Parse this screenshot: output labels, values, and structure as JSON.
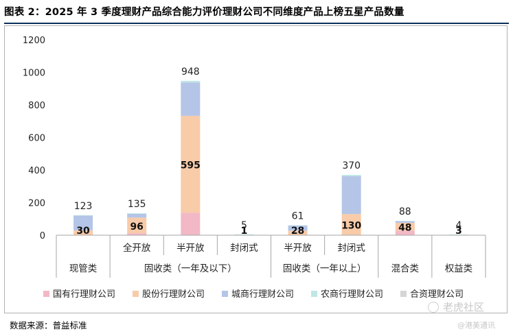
{
  "title": "图表 2：2025 年 3 季度理财产品综合能力评价理财公司不同维度产品上榜五星产品数量",
  "source": "数据来源：普益标准",
  "watermark": "老虎社区",
  "watermark_sub": "@港美通讯",
  "chart_data": {
    "type": "bar",
    "stacked": true,
    "ylim": [
      0,
      1200
    ],
    "yticks": [
      0,
      200,
      400,
      600,
      800,
      1000,
      1200
    ],
    "grid": false,
    "legend_position": "bottom",
    "categories": [
      "",
      "全开放",
      "半开放",
      "封闭式",
      "半开放",
      "封闭式",
      "",
      ""
    ],
    "groups": [
      {
        "label": "现管类",
        "span": 1
      },
      {
        "label": "固收类（一年及以下）",
        "span": 3
      },
      {
        "label": "固收类（一年以上）",
        "span": 2
      },
      {
        "label": "混合类",
        "span": 1
      },
      {
        "label": "权益类",
        "span": 1
      }
    ],
    "totals": [
      123,
      135,
      948,
      5,
      61,
      370,
      88,
      4
    ],
    "inner_labels": [
      "30",
      "96",
      "595",
      "1",
      "28",
      "130",
      "48",
      "3"
    ],
    "series": [
      {
        "name": "国有行理财公司",
        "color": "#f2b8c6",
        "values": [
          0,
          12,
          138,
          0,
          0,
          0,
          28,
          0
        ]
      },
      {
        "name": "股份行理财公司",
        "color": "#f8cba9",
        "values": [
          30,
          96,
          595,
          1,
          28,
          130,
          48,
          3
        ]
      },
      {
        "name": "城商行理财公司",
        "color": "#b4c5e7",
        "values": [
          91,
          23,
          205,
          2,
          31,
          232,
          10,
          0
        ]
      },
      {
        "name": "农商行理财公司",
        "color": "#bfe6e5",
        "values": [
          2,
          4,
          10,
          2,
          2,
          8,
          2,
          1
        ]
      },
      {
        "name": "合资理财公司",
        "color": "#d6d6d6",
        "values": [
          0,
          0,
          0,
          0,
          0,
          0,
          0,
          0
        ]
      }
    ]
  }
}
